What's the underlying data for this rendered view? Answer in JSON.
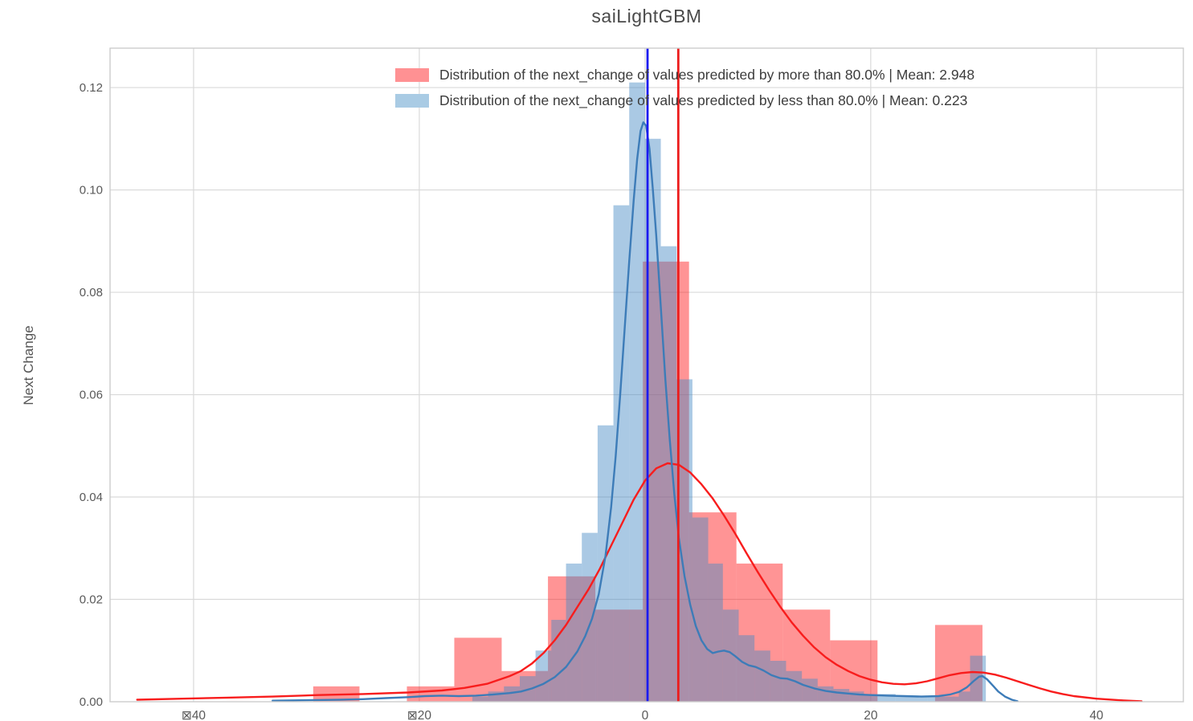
{
  "title": "saiLightGBM",
  "axes": {
    "y_label": "Next Change"
  },
  "legend": [
    {
      "label": "Distribution of the next_change of values predicted by more than 80.0% | Mean: 2.948",
      "color": "#ff9193"
    },
    {
      "label": "Distribution of the next_change of values predicted by less than 80.0% | Mean: 0.223",
      "color": "#a9cbe4"
    }
  ],
  "chart_data": {
    "type": "histogram+kde",
    "title": "saiLightGBM",
    "xlabel": "",
    "ylabel": "Next Change",
    "grid": true,
    "legend_position": "upper center",
    "xlim": [
      -47.4,
      47.7
    ],
    "ylim": [
      0,
      0.1277
    ],
    "x_tick_values": [
      -40,
      -20,
      0,
      20,
      40
    ],
    "x_tick_labels": [
      "⊠40",
      "⊠20",
      "0",
      "20",
      "40"
    ],
    "y_tick_values": [
      0.0,
      0.02,
      0.04,
      0.06,
      0.08,
      0.1,
      0.12
    ],
    "y_tick_labels": [
      "0.00",
      "0.02",
      "0.04",
      "0.06",
      "0.08",
      "0.10",
      "0.12"
    ],
    "colors": {
      "grid": "#d9d9d9",
      "spine": "#cccccc",
      "tick_text": "#595959"
    },
    "series": [
      {
        "name": "Distribution of the next_change of values predicted by more than 80.0% | Mean: 2.948",
        "mean": 2.948,
        "fill": "#ff1517",
        "fill_opacity": 0.46,
        "line_color": "#f81d1d",
        "mean_line_color": "#ec1c1c",
        "bars": [
          [
            -29.4,
            -25.3,
            0.003
          ],
          [
            -21.1,
            -16.9,
            0.003
          ],
          [
            -16.9,
            -12.7,
            0.0125
          ],
          [
            -12.7,
            -8.6,
            0.006
          ],
          [
            -8.6,
            -4.4,
            0.0245
          ],
          [
            -4.4,
            -0.2,
            0.018
          ],
          [
            -0.2,
            3.9,
            0.086
          ],
          [
            3.9,
            8.1,
            0.037
          ],
          [
            8.1,
            12.2,
            0.027
          ],
          [
            12.2,
            16.4,
            0.018
          ],
          [
            16.4,
            20.6,
            0.012
          ],
          [
            25.7,
            29.9,
            0.015
          ]
        ],
        "kde": [
          [
            -45,
            0.0004
          ],
          [
            -41,
            0.0006
          ],
          [
            -37,
            0.0008
          ],
          [
            -33,
            0.001
          ],
          [
            -29,
            0.0013
          ],
          [
            -25,
            0.0015
          ],
          [
            -21,
            0.0018
          ],
          [
            -18,
            0.0022
          ],
          [
            -16,
            0.0027
          ],
          [
            -14,
            0.0035
          ],
          [
            -12,
            0.005
          ],
          [
            -11,
            0.006
          ],
          [
            -10,
            0.0075
          ],
          [
            -9,
            0.0095
          ],
          [
            -8,
            0.012
          ],
          [
            -7,
            0.015
          ],
          [
            -6,
            0.0185
          ],
          [
            -5,
            0.022
          ],
          [
            -4,
            0.026
          ],
          [
            -3,
            0.0305
          ],
          [
            -2,
            0.035
          ],
          [
            -1,
            0.0395
          ],
          [
            0,
            0.0432
          ],
          [
            1,
            0.0456
          ],
          [
            2,
            0.0466
          ],
          [
            3,
            0.0463
          ],
          [
            4,
            0.0448
          ],
          [
            5,
            0.0425
          ],
          [
            6,
            0.0397
          ],
          [
            7,
            0.0364
          ],
          [
            8,
            0.0328
          ],
          [
            9,
            0.029
          ],
          [
            10,
            0.0253
          ],
          [
            11,
            0.0218
          ],
          [
            12,
            0.0185
          ],
          [
            13,
            0.0155
          ],
          [
            14,
            0.0129
          ],
          [
            15,
            0.0106
          ],
          [
            16,
            0.0087
          ],
          [
            17,
            0.0072
          ],
          [
            18,
            0.006
          ],
          [
            19,
            0.005
          ],
          [
            20,
            0.0043
          ],
          [
            21,
            0.0038
          ],
          [
            22,
            0.0035
          ],
          [
            23,
            0.0034
          ],
          [
            24,
            0.0036
          ],
          [
            25,
            0.004
          ],
          [
            26,
            0.0046
          ],
          [
            27,
            0.0052
          ],
          [
            28,
            0.0056
          ],
          [
            29,
            0.0058
          ],
          [
            30,
            0.0057
          ],
          [
            31,
            0.0053
          ],
          [
            32,
            0.0047
          ],
          [
            33,
            0.004
          ],
          [
            34,
            0.0033
          ],
          [
            35,
            0.0026
          ],
          [
            36,
            0.002
          ],
          [
            37,
            0.0015
          ],
          [
            38,
            0.0011
          ],
          [
            40,
            0.0006
          ],
          [
            42,
            0.0003
          ],
          [
            44,
            0.0001
          ]
        ]
      },
      {
        "name": "Distribution of the next_change of values predicted by less than 80.0% | Mean: 0.223",
        "mean": 0.223,
        "fill": "#4589c4",
        "fill_opacity": 0.46,
        "line_color": "#3d7cb8",
        "mean_line_color": "#1a1af0",
        "bars": [
          [
            -15.3,
            -13.9,
            0.001
          ],
          [
            -13.9,
            -12.5,
            0.002
          ],
          [
            -12.5,
            -11.1,
            0.003
          ],
          [
            -11.1,
            -9.7,
            0.005
          ],
          [
            -9.7,
            -8.3,
            0.01
          ],
          [
            -8.3,
            -7.0,
            0.016
          ],
          [
            -7.0,
            -5.6,
            0.027
          ],
          [
            -5.6,
            -4.2,
            0.033
          ],
          [
            -4.2,
            -2.8,
            0.054
          ],
          [
            -2.8,
            -1.4,
            0.097
          ],
          [
            -1.4,
            0.0,
            0.121
          ],
          [
            0.0,
            1.4,
            0.11
          ],
          [
            1.4,
            2.8,
            0.089
          ],
          [
            2.8,
            4.2,
            0.063
          ],
          [
            4.2,
            5.6,
            0.036
          ],
          [
            5.6,
            6.9,
            0.027
          ],
          [
            6.9,
            8.3,
            0.018
          ],
          [
            8.3,
            9.7,
            0.013
          ],
          [
            9.7,
            11.1,
            0.01
          ],
          [
            11.1,
            12.5,
            0.008
          ],
          [
            12.5,
            13.9,
            0.006
          ],
          [
            13.9,
            15.3,
            0.0045
          ],
          [
            15.3,
            16.7,
            0.003
          ],
          [
            16.7,
            18.1,
            0.0025
          ],
          [
            18.1,
            19.4,
            0.002
          ],
          [
            19.4,
            22.2,
            0.0015
          ],
          [
            22.2,
            25.0,
            0.0012
          ],
          [
            25.0,
            27.8,
            0.001
          ],
          [
            27.8,
            28.8,
            0.002
          ],
          [
            28.8,
            30.2,
            0.009
          ]
        ],
        "kde": [
          [
            -33,
            0.0002
          ],
          [
            -30,
            0.0003
          ],
          [
            -27,
            0.0004
          ],
          [
            -25,
            0.0005
          ],
          [
            -23,
            0.0007
          ],
          [
            -21,
            0.0009
          ],
          [
            -19.5,
            0.0011
          ],
          [
            -18,
            0.0012
          ],
          [
            -16.5,
            0.0011
          ],
          [
            -15,
            0.0012
          ],
          [
            -13.5,
            0.0014
          ],
          [
            -12,
            0.0017
          ],
          [
            -11,
            0.002
          ],
          [
            -10,
            0.0026
          ],
          [
            -9,
            0.0035
          ],
          [
            -8,
            0.0048
          ],
          [
            -7,
            0.0068
          ],
          [
            -6,
            0.0098
          ],
          [
            -5.3,
            0.0128
          ],
          [
            -4.7,
            0.0162
          ],
          [
            -4.1,
            0.021
          ],
          [
            -3.5,
            0.0285
          ],
          [
            -3,
            0.038
          ],
          [
            -2.6,
            0.048
          ],
          [
            -2.2,
            0.06
          ],
          [
            -1.8,
            0.073
          ],
          [
            -1.4,
            0.086
          ],
          [
            -1,
            0.098
          ],
          [
            -0.7,
            0.106
          ],
          [
            -0.4,
            0.1115
          ],
          [
            -0.15,
            0.1132
          ],
          [
            0.1,
            0.1125
          ],
          [
            0.4,
            0.108
          ],
          [
            0.7,
            0.1
          ],
          [
            1,
            0.091
          ],
          [
            1.4,
            0.077
          ],
          [
            1.8,
            0.063
          ],
          [
            2.2,
            0.051
          ],
          [
            2.6,
            0.0405
          ],
          [
            3,
            0.032
          ],
          [
            3.5,
            0.0245
          ],
          [
            4,
            0.019
          ],
          [
            4.5,
            0.0148
          ],
          [
            5,
            0.012
          ],
          [
            5.5,
            0.0103
          ],
          [
            6,
            0.0095
          ],
          [
            6.5,
            0.0098
          ],
          [
            7,
            0.01
          ],
          [
            7.5,
            0.0097
          ],
          [
            8,
            0.0089
          ],
          [
            8.6,
            0.0078
          ],
          [
            9.2,
            0.0071
          ],
          [
            9.8,
            0.0068
          ],
          [
            10.5,
            0.0061
          ],
          [
            11.2,
            0.0052
          ],
          [
            12,
            0.0046
          ],
          [
            12.6,
            0.0045
          ],
          [
            13.3,
            0.004
          ],
          [
            14,
            0.0033
          ],
          [
            15,
            0.0026
          ],
          [
            16,
            0.0021
          ],
          [
            17,
            0.0018
          ],
          [
            18,
            0.0016
          ],
          [
            19,
            0.0014
          ],
          [
            20,
            0.0013
          ],
          [
            21.5,
            0.0012
          ],
          [
            23,
            0.0011
          ],
          [
            24.5,
            0.001
          ],
          [
            26,
            0.0011
          ],
          [
            27,
            0.0014
          ],
          [
            27.8,
            0.0019
          ],
          [
            28.5,
            0.0028
          ],
          [
            29.1,
            0.004
          ],
          [
            29.6,
            0.0049
          ],
          [
            29.9,
            0.005
          ],
          [
            30.3,
            0.0044
          ],
          [
            30.8,
            0.0032
          ],
          [
            31.3,
            0.002
          ],
          [
            31.9,
            0.001
          ],
          [
            32.5,
            0.0004
          ],
          [
            33,
            0.0001
          ]
        ]
      }
    ]
  }
}
